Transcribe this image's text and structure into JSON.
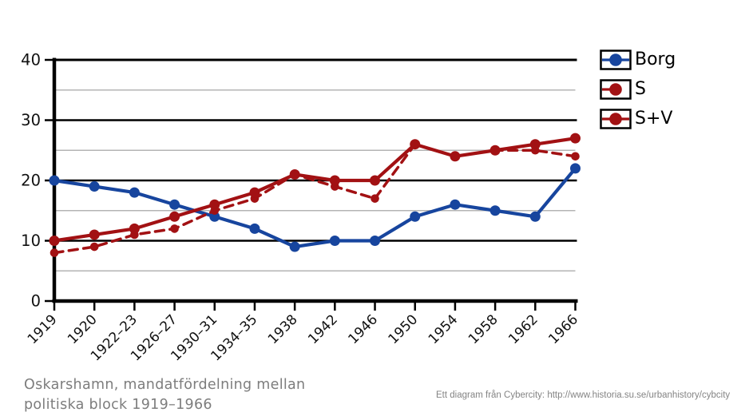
{
  "page": {
    "caption_line1": "Oskarshamn, mandatfördelning mellan",
    "caption_line2": "politiska block 1919–1966",
    "credit": "Ett diagram från Cybercity: http://www.historia.su.se/urbanhistory/cybcity"
  },
  "colors": {
    "blue": "#17459E",
    "red": "#A21113",
    "grid_minor": "#b4b4b4",
    "axis": "#000000",
    "caption_gray": "#7d7d7d",
    "credit_gray": "#848484"
  },
  "legend": [
    {
      "label": "Borg",
      "series": "Borg"
    },
    {
      "label": "S",
      "series": "S"
    },
    {
      "label": "S+V",
      "series": "S+V"
    }
  ],
  "chart_data": {
    "type": "line",
    "title": "Oskarshamn, mandatfördelning mellan politiska block 1919–1966",
    "categories": [
      "1919",
      "1920",
      "1922–23",
      "1926–27",
      "1930–31",
      "1934–35",
      "1938",
      "1942",
      "1946",
      "1950",
      "1954",
      "1958",
      "1962",
      "1966"
    ],
    "series": [
      {
        "name": "Borg",
        "color": "#17459E",
        "style": "solid",
        "values": [
          20,
          19,
          18,
          16,
          14,
          12,
          9,
          10,
          10,
          14,
          16,
          15,
          14,
          22
        ]
      },
      {
        "name": "S",
        "color": "#A21113",
        "style": "dashed",
        "values": [
          8,
          9,
          11,
          12,
          15,
          17,
          21,
          19,
          17,
          26,
          24,
          25,
          25,
          24
        ]
      },
      {
        "name": "S+V",
        "color": "#A21113",
        "style": "solid",
        "values": [
          10,
          11,
          12,
          14,
          16,
          18,
          21,
          20,
          20,
          26,
          24,
          25,
          26,
          27
        ]
      }
    ],
    "xlabel": "",
    "ylabel": "",
    "ylim": [
      0,
      40
    ],
    "yticks_major": [
      0,
      10,
      20,
      30,
      40
    ],
    "yticks_minor": [
      5,
      15,
      25,
      35
    ],
    "grid": true,
    "legend_position": "top-right"
  }
}
